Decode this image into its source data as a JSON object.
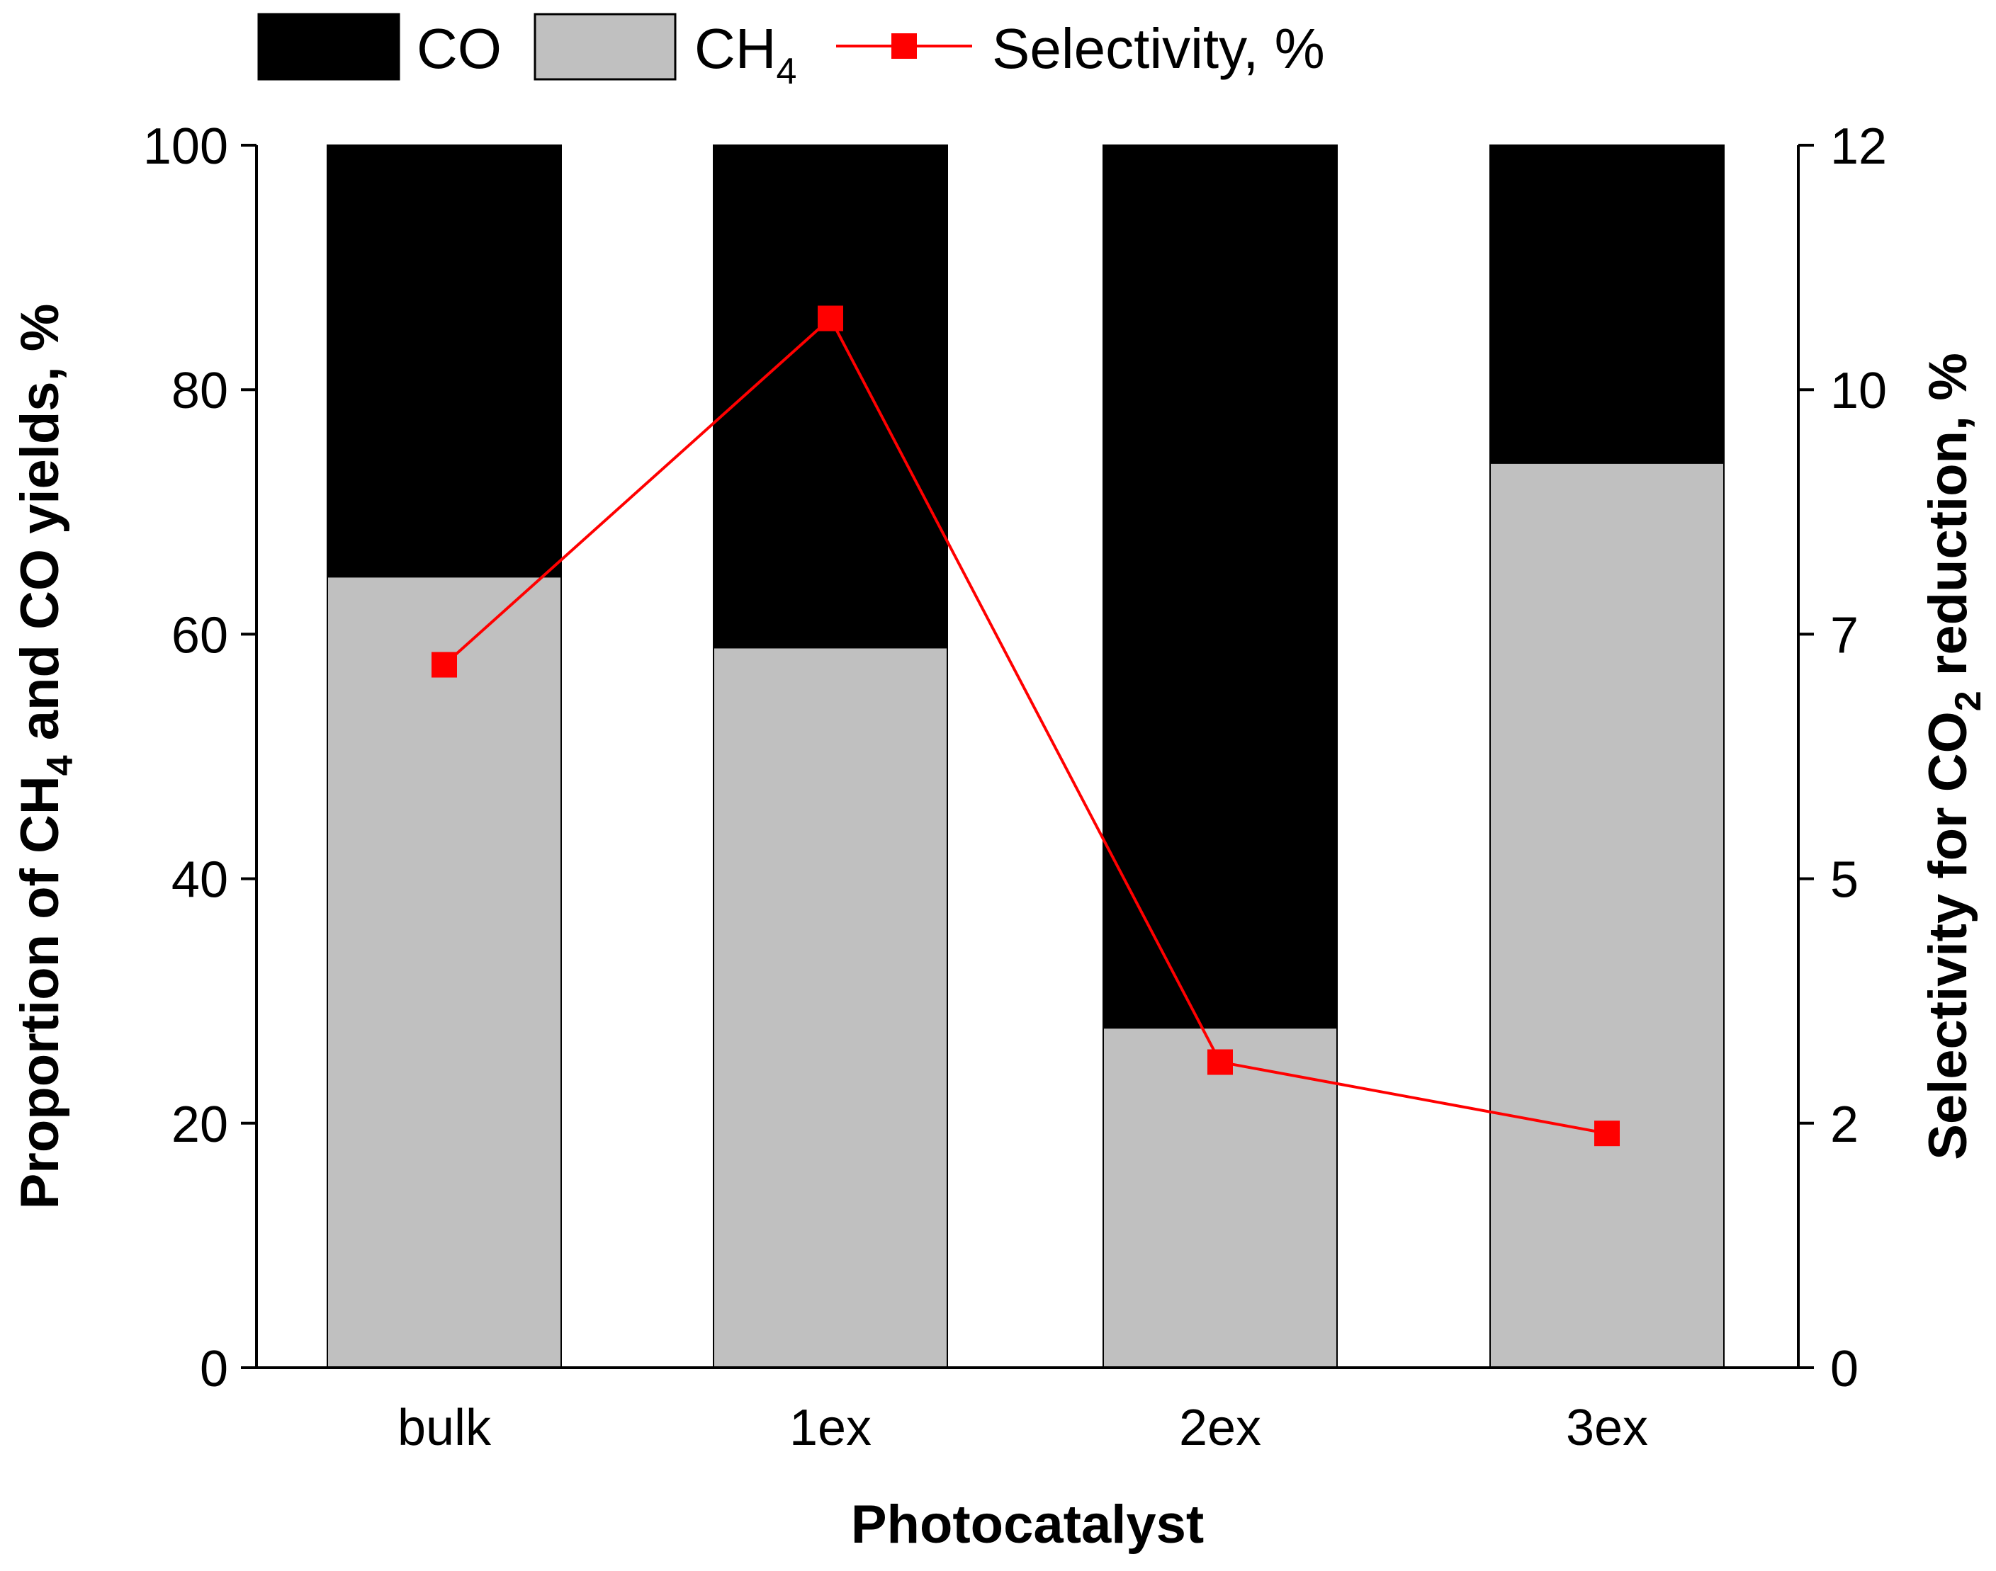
{
  "chart_data": {
    "type": "bar",
    "stacked": true,
    "categories": [
      "bulk",
      "1ex",
      "2ex",
      "3ex"
    ],
    "series": [
      {
        "name": "CH",
        "subscript": "4",
        "kind": "bar",
        "axis": "left",
        "color": "#c0c0c0",
        "values": [
          64.7,
          58.9,
          27.8,
          74.0
        ]
      },
      {
        "name": "CO",
        "kind": "bar",
        "axis": "left",
        "color": "#000000",
        "values": [
          35.3,
          41.1,
          72.2,
          26.0
        ]
      },
      {
        "name": "Selectivity, %",
        "kind": "line",
        "axis": "right",
        "color": "#ff0000",
        "marker": "square",
        "values": [
          6.9,
          10.3,
          3.0,
          2.3
        ]
      }
    ],
    "legend": [
      {
        "key": "co",
        "label": "CO",
        "sub": ""
      },
      {
        "key": "ch4",
        "label": "CH",
        "sub": "4"
      },
      {
        "key": "sel",
        "label": "Selectivity, %",
        "sub": ""
      }
    ],
    "xlabel": "Photocatalyst",
    "ylabel_left": {
      "pre": "Proportion of CH",
      "sub": "4",
      "post": " and CO yields, %"
    },
    "ylabel_right": {
      "pre": "Selectivity for CO",
      "sub": "2",
      "post": " reduction, %"
    },
    "ylim_left": [
      0,
      100
    ],
    "yticks_left": [
      0,
      20,
      40,
      60,
      80,
      100
    ],
    "ylim_right": [
      0,
      12
    ],
    "yticks_right": [
      {
        "value": 0,
        "label": "0"
      },
      {
        "value": 2.4,
        "label": "2"
      },
      {
        "value": 4.8,
        "label": "5"
      },
      {
        "value": 7.2,
        "label": "7"
      },
      {
        "value": 9.6,
        "label": "10"
      },
      {
        "value": 12,
        "label": "12"
      }
    ],
    "legend_position": "top-left"
  }
}
